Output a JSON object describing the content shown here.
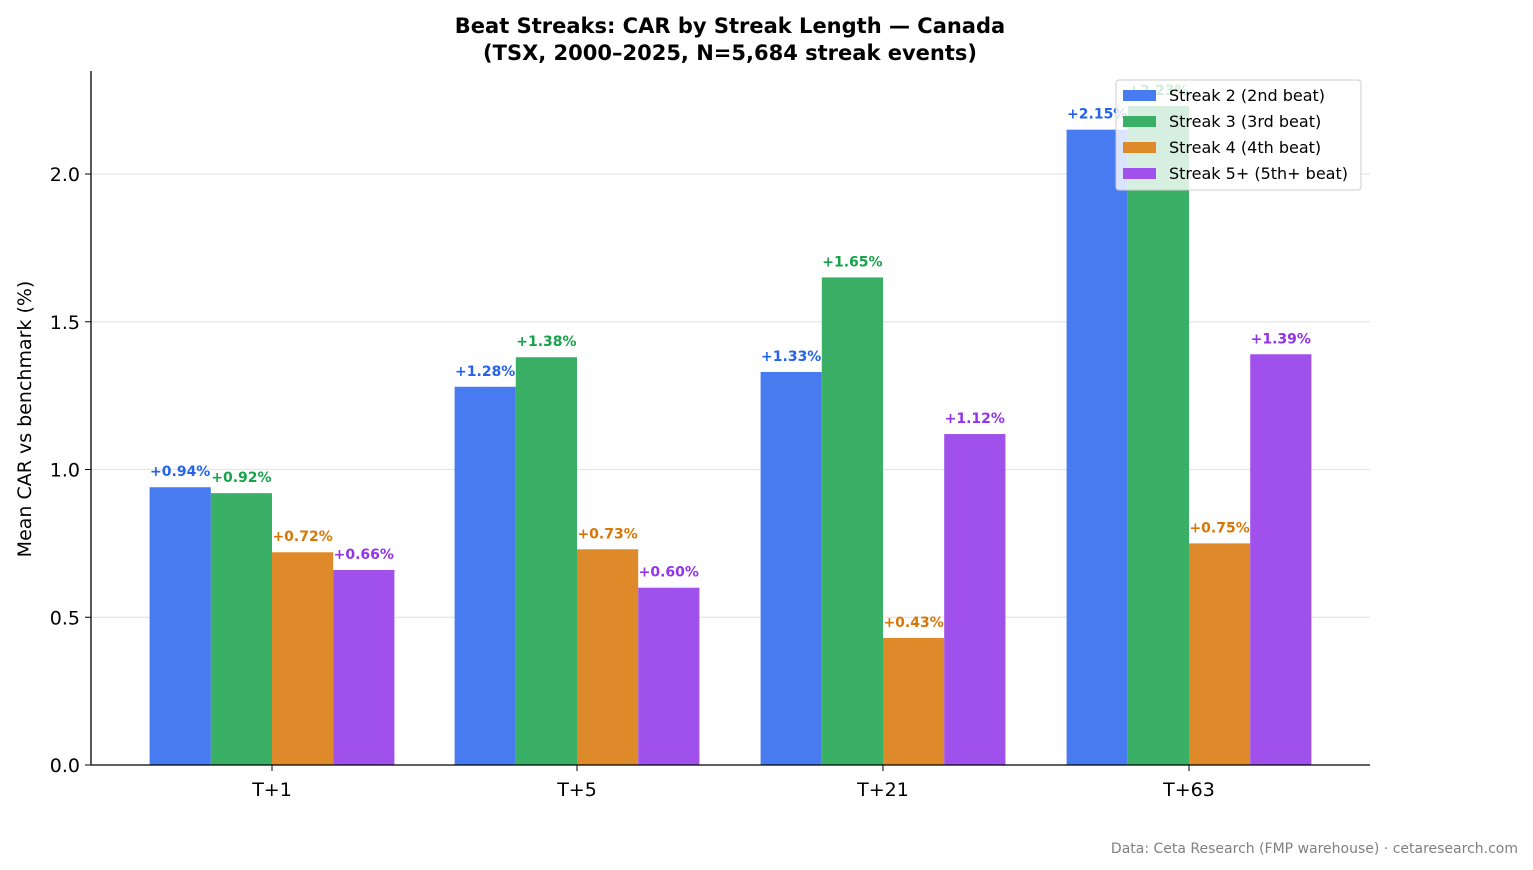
{
  "chart_data": {
    "type": "bar",
    "title": "Beat Streaks: CAR by Streak Length — Canada",
    "subtitle": "(TSX, 2000–2025, N=5,684 streak events)",
    "xlabel": "",
    "ylabel": "Mean CAR vs benchmark (%)",
    "ylim": [
      0,
      2.35
    ],
    "yticks": [
      "0.0",
      "0.5",
      "1.0",
      "1.5",
      "2.0"
    ],
    "grid": "horizontal",
    "legend_position": "top-right",
    "categories": [
      "T+1",
      "T+5",
      "T+21",
      "T+63"
    ],
    "series": [
      {
        "name": "Streak 2 (2nd beat)",
        "color": "#477BEF",
        "label_color": "#2563EB",
        "values": [
          0.94,
          1.28,
          1.33,
          2.15
        ],
        "labels": [
          "+0.94%",
          "+1.28%",
          "+1.33%",
          "+2.15%"
        ]
      },
      {
        "name": "Streak 3 (3rd beat)",
        "color": "#3AB066",
        "label_color": "#16A34A",
        "values": [
          0.92,
          1.38,
          1.65,
          2.23
        ],
        "labels": [
          "+0.92%",
          "+1.38%",
          "+1.65%",
          "+2.23%"
        ]
      },
      {
        "name": "Streak 4 (4th beat)",
        "color": "#DE8A2A",
        "label_color": "#D97706",
        "values": [
          0.72,
          0.73,
          0.43,
          0.75
        ],
        "labels": [
          "+0.72%",
          "+0.73%",
          "+0.43%",
          "+0.75%"
        ]
      },
      {
        "name": "Streak 5+ (5th+ beat)",
        "color": "#A051EC",
        "label_color": "#9333EA",
        "values": [
          0.66,
          0.6,
          1.12,
          1.39
        ],
        "labels": [
          "+0.66%",
          "+0.60%",
          "+1.12%",
          "+1.39%"
        ]
      }
    ]
  },
  "footer": "Data: Ceta Research (FMP warehouse) · cetaresearch.com"
}
